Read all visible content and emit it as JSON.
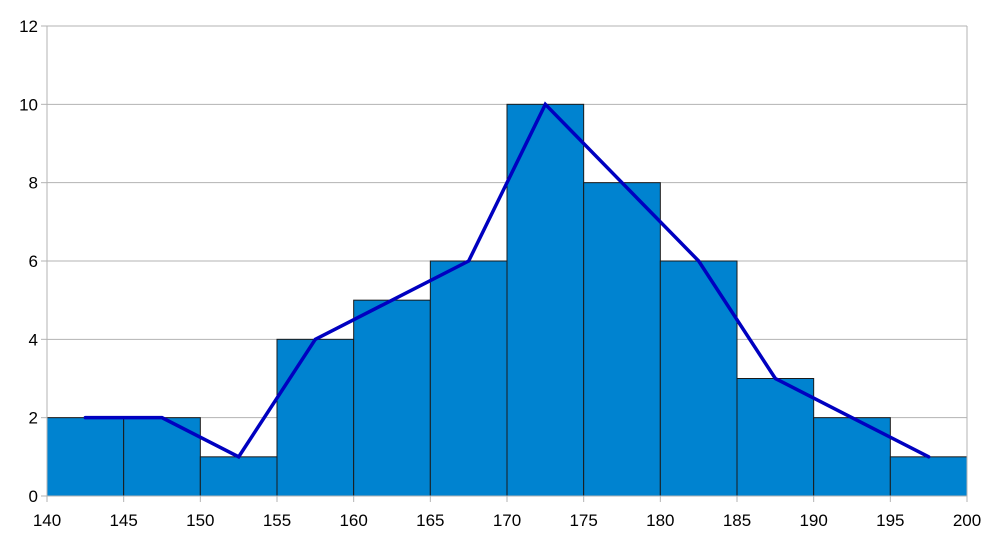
{
  "chart_data": {
    "type": "bar",
    "subtype": "histogram-with-frequency-polygon",
    "title": "",
    "xlabel": "",
    "ylabel": "",
    "bins": [
      {
        "from": 140,
        "to": 145,
        "count": 2
      },
      {
        "from": 145,
        "to": 150,
        "count": 2
      },
      {
        "from": 150,
        "to": 155,
        "count": 1
      },
      {
        "from": 155,
        "to": 160,
        "count": 4
      },
      {
        "from": 160,
        "to": 165,
        "count": 5
      },
      {
        "from": 165,
        "to": 170,
        "count": 6
      },
      {
        "from": 170,
        "to": 175,
        "count": 10
      },
      {
        "from": 175,
        "to": 180,
        "count": 8
      },
      {
        "from": 180,
        "to": 185,
        "count": 6
      },
      {
        "from": 185,
        "to": 190,
        "count": 3
      },
      {
        "from": 190,
        "to": 195,
        "count": 2
      },
      {
        "from": 195,
        "to": 200,
        "count": 1
      }
    ],
    "polygon": {
      "x": [
        142.5,
        147.5,
        152.5,
        157.5,
        162.5,
        167.5,
        172.5,
        177.5,
        182.5,
        187.5,
        192.5,
        197.5
      ],
      "y": [
        2,
        2,
        1,
        4,
        5,
        6,
        10,
        8,
        6,
        3,
        2,
        1
      ]
    },
    "xlim": [
      140,
      200
    ],
    "ylim": [
      0,
      12
    ],
    "x_ticks": [
      "140",
      "145",
      "150",
      "155",
      "160",
      "165",
      "170",
      "175",
      "180",
      "185",
      "190",
      "195",
      "200"
    ],
    "y_ticks": [
      "0",
      "2",
      "4",
      "6",
      "8",
      "10",
      "12"
    ],
    "grid": true,
    "colors": {
      "bar_fill": "#0083d0",
      "polygon_line": "#0000c0",
      "grid": "#b3b3b3"
    }
  }
}
